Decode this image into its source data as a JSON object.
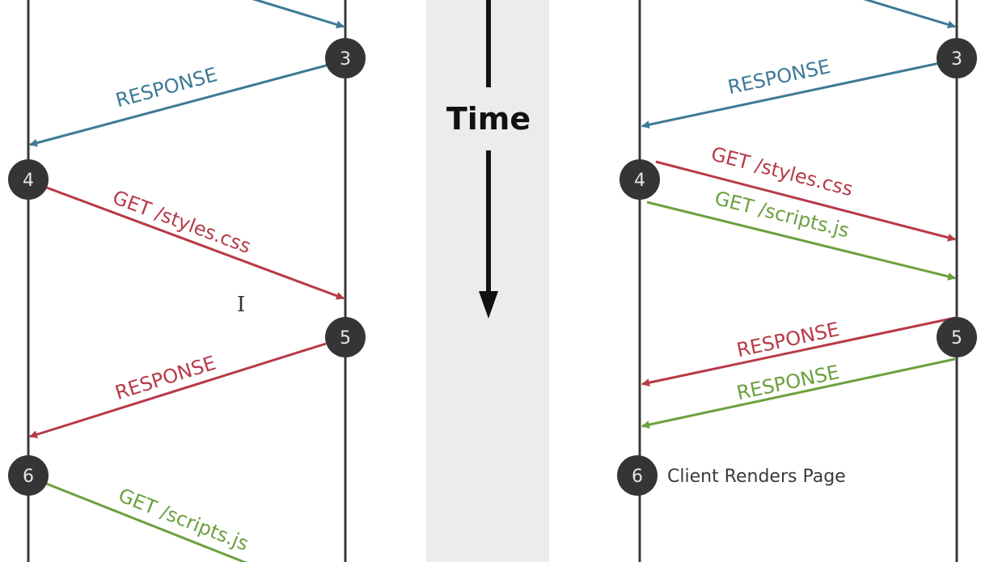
{
  "colors": {
    "blue": "#3d7a96",
    "red": "#b83a48",
    "green": "#6ba03e",
    "node": "#353535",
    "lifeline": "#3a3a3a",
    "time_band": "#ececec",
    "time_arrow": "#111111"
  },
  "time": {
    "label": "Time"
  },
  "left": {
    "arrows": {
      "top_request": {
        "label": "",
        "color": "blue"
      },
      "response_1": {
        "label": "RESPONSE",
        "color": "blue"
      },
      "get_styles": {
        "label": "GET /styles.css",
        "color": "red"
      },
      "response_2": {
        "label": "RESPONSE",
        "color": "red"
      },
      "get_scripts": {
        "label": "GET /scripts.js",
        "color": "green"
      }
    },
    "nodes": [
      "3",
      "4",
      "5",
      "6"
    ]
  },
  "right": {
    "arrows": {
      "top_request": {
        "label": "",
        "color": "blue"
      },
      "response_1": {
        "label": "RESPONSE",
        "color": "blue"
      },
      "get_styles": {
        "label": "GET /styles.css",
        "color": "red"
      },
      "get_scripts": {
        "label": "GET /scripts.js",
        "color": "green"
      },
      "response_red": {
        "label": "RESPONSE",
        "color": "red"
      },
      "response_green": {
        "label": "RESPONSE",
        "color": "green"
      }
    },
    "nodes": [
      "3",
      "4",
      "5",
      "6"
    ],
    "note": "Client Renders Page"
  },
  "cursor": {
    "icon": "text-cursor-icon",
    "glyph": "I"
  }
}
